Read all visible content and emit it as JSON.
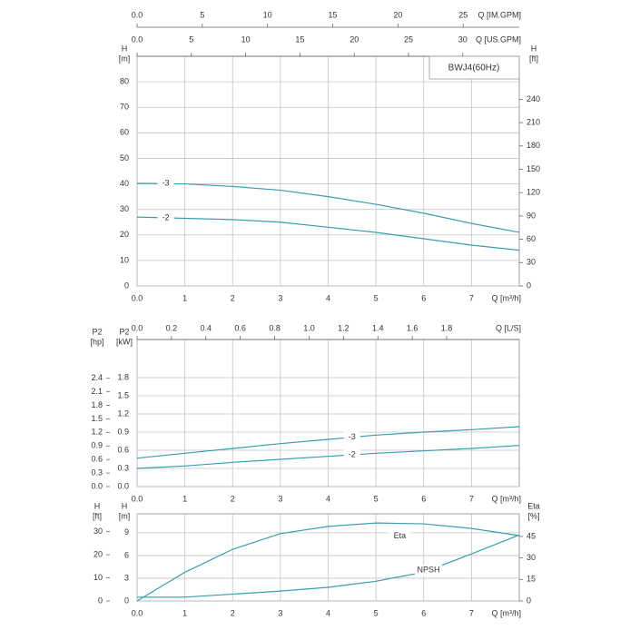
{
  "chart_data": [
    {
      "type": "line",
      "title": "BWJ4(60Hz)",
      "x": [
        0,
        1,
        2,
        3,
        4,
        5,
        6,
        7,
        8
      ],
      "xlim": [
        0,
        8
      ],
      "xticks": [
        {
          "value": 0,
          "label": "0.0"
        },
        1,
        2,
        3,
        4,
        5,
        6,
        7
      ],
      "xlabel": "Q [m³/h]",
      "top_axes": [
        {
          "label": "Q [IM.GPM]",
          "lim": [
            0,
            29.3
          ],
          "ticks": [
            {
              "value": 0,
              "label": "0.0"
            },
            5,
            10,
            15,
            20,
            25
          ]
        },
        {
          "label": "Q [US.GPM]",
          "lim": [
            0,
            35.2
          ],
          "ticks": [
            {
              "value": 0,
              "label": "0.0"
            },
            5,
            10,
            15,
            20,
            25,
            30
          ]
        }
      ],
      "ylabel": [
        "H",
        "[m]"
      ],
      "ylim": [
        0,
        90
      ],
      "yticks": [
        0,
        10,
        20,
        30,
        40,
        50,
        60,
        70,
        80
      ],
      "y2label": [
        "H",
        "[ft]"
      ],
      "y2_position": "right",
      "y2lim": [
        0,
        295.3
      ],
      "y2ticks": [
        0,
        30,
        60,
        90,
        120,
        150,
        180,
        210,
        240
      ],
      "grid": true,
      "series": [
        {
          "name": "-3",
          "color": "#3a9db0",
          "values": [
            40.2,
            40,
            39,
            37.5,
            35,
            32,
            28.5,
            24.5,
            21
          ]
        },
        {
          "name": "-2",
          "color": "#3a9db0",
          "values": [
            27,
            26.5,
            26,
            25,
            23,
            21,
            18.5,
            16,
            14
          ]
        }
      ]
    },
    {
      "type": "line",
      "x": [
        0,
        1,
        2,
        3,
        4,
        5,
        6,
        7,
        8
      ],
      "xlim": [
        0,
        8
      ],
      "xticks": [
        {
          "value": 0,
          "label": "0.0"
        },
        1,
        2,
        3,
        4,
        5,
        6,
        7
      ],
      "xlabel": "Q [m³/h]",
      "top_axes": [
        {
          "label": "Q [L/S]",
          "lim": [
            0,
            2.222
          ],
          "ticks": [
            {
              "value": 0,
              "label": "0.0"
            },
            0.2,
            0.4,
            0.6,
            0.8,
            {
              "value": 1,
              "label": "1.0"
            },
            1.2,
            1.4,
            1.6,
            1.8
          ]
        }
      ],
      "ylabel": [
        "P2",
        "[kW]"
      ],
      "ylim": [
        0,
        2.43
      ],
      "yticks": [
        {
          "value": 0,
          "label": "0.0"
        },
        0.3,
        0.6,
        0.9,
        1.2,
        1.5,
        1.8
      ],
      "y2label": [
        "P2",
        "[hp]"
      ],
      "y2_position": "left",
      "y2lim": [
        0,
        3.26
      ],
      "y2ticks": [
        {
          "value": 0,
          "label": "0.0"
        },
        0.3,
        0.6,
        0.9,
        1.2,
        1.5,
        1.8,
        2.1,
        2.4
      ],
      "grid": true,
      "series": [
        {
          "name": "-3",
          "color": "#3a9db0",
          "values": [
            0.47,
            0.55,
            0.63,
            0.71,
            0.78,
            0.85,
            0.9,
            0.94,
            0.99
          ]
        },
        {
          "name": "-2",
          "color": "#3a9db0",
          "values": [
            0.3,
            0.34,
            0.4,
            0.45,
            0.5,
            0.55,
            0.59,
            0.63,
            0.68
          ]
        }
      ]
    },
    {
      "type": "line",
      "x": [
        0,
        1,
        2,
        3,
        4,
        5,
        6,
        7,
        8
      ],
      "xlim": [
        0,
        8
      ],
      "xticks": [
        {
          "value": 0,
          "label": "0.0"
        },
        1,
        2,
        3,
        4,
        5,
        6,
        7
      ],
      "xlabel": "Q [m³/h]",
      "top_axes": [],
      "ylabel": [
        "H",
        "[m]"
      ],
      "ylim": [
        0,
        11.5
      ],
      "yticks": [
        0,
        3,
        6,
        9
      ],
      "y3label": [
        "H",
        "[ft]"
      ],
      "y3lim": [
        0,
        37.7
      ],
      "y3ticks": [
        0,
        10,
        20,
        30
      ],
      "y2label": [
        "Eta",
        "[%]"
      ],
      "y2_position": "right",
      "y2lim": [
        0,
        60.8
      ],
      "y2ticks": [
        0,
        15,
        30,
        45
      ],
      "grid": true,
      "series": [
        {
          "name": "Eta",
          "color": "#3a9db0",
          "axis": "y2",
          "values": [
            0,
            20,
            36,
            47,
            52,
            54.4,
            53.8,
            50.6,
            45.6
          ]
        },
        {
          "name": "NPSH",
          "color": "#3a9db0",
          "values": [
            0.5,
            0.5,
            0.9,
            1.3,
            1.8,
            2.6,
            3.8,
            6.2,
            8.7
          ]
        }
      ]
    }
  ]
}
